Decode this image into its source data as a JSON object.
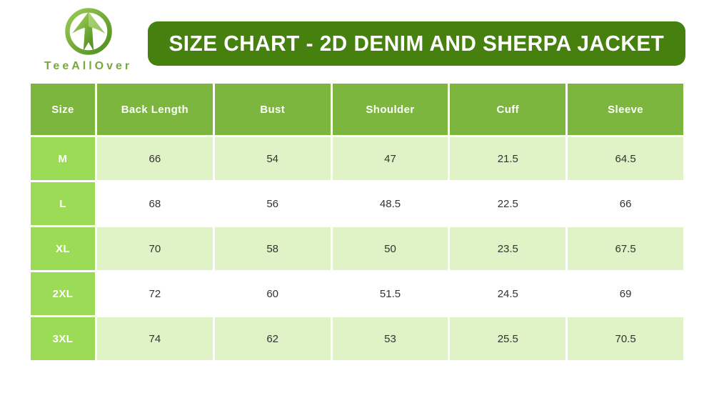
{
  "brand": {
    "name": "TeeAllOver",
    "logo_icon": "arrow-tree-logo"
  },
  "banner": {
    "title": "SIZE CHART - 2D DENIM AND SHERPA JACKET"
  },
  "chart_data": {
    "type": "table",
    "title": "SIZE CHART - 2D DENIM AND SHERPA JACKET",
    "columns": [
      "Size",
      "Back Length",
      "Bust",
      "Shoulder",
      "Cuff",
      "Sleeve"
    ],
    "rows": [
      {
        "size": "M",
        "values": [
          "66",
          "54",
          "47",
          "21.5",
          "64.5"
        ]
      },
      {
        "size": "L",
        "values": [
          "68",
          "56",
          "48.5",
          "22.5",
          "66"
        ]
      },
      {
        "size": "XL",
        "values": [
          "70",
          "58",
          "50",
          "23.5",
          "67.5"
        ]
      },
      {
        "size": "2XL",
        "values": [
          "72",
          "60",
          "51.5",
          "24.5",
          "69"
        ]
      },
      {
        "size": "3XL",
        "values": [
          "74",
          "62",
          "53",
          "25.5",
          "70.5"
        ]
      }
    ],
    "layout_hint": "first data row shaded light green, alternating with white"
  },
  "colors": {
    "banner_green": "#46800E",
    "header_green": "#7CB63E",
    "size_cell_green": "#9BDB56",
    "row_shaded_green": "#DFF3C7",
    "row_plain_white": "#FFFFFF",
    "brand_text_green": "#76A83E",
    "cell_text": "#333333",
    "title_text": "#FFFFFF"
  }
}
